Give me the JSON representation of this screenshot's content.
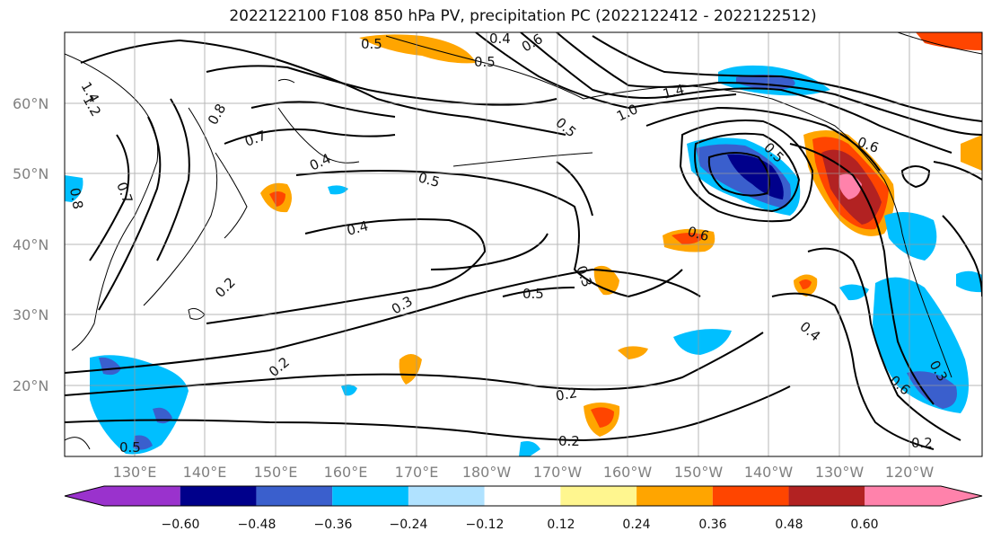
{
  "title": "2022122100 F108 850 hPa PV, precipitation PC (2022122412 - 2022122512)",
  "lat_labels": [
    "60°N",
    "50°N",
    "40°N",
    "30°N",
    "20°N"
  ],
  "lon_labels": [
    "130°E",
    "140°E",
    "150°E",
    "160°E",
    "170°E",
    "180°W",
    "170°W",
    "160°W",
    "150°W",
    "140°W",
    "130°W",
    "120°W"
  ],
  "colorbar": {
    "colors": [
      "#9a32cd",
      "#00008b",
      "#3a5fcd",
      "#00bfff",
      "#b0e2ff",
      "#ffffff",
      "#fff68f",
      "#ffa500",
      "#ff4500",
      "#b22222",
      "#ff82ab"
    ],
    "ticks": [
      "−0.60",
      "−0.48",
      "−0.36",
      "−0.24",
      "−0.12",
      "0.12",
      "0.24",
      "0.36",
      "0.48",
      "0.60"
    ]
  },
  "contour_labels": [
    "1.4",
    "1.2",
    "0.4",
    "0.5",
    "0.5",
    "0.6",
    "0.5",
    "1.0",
    "1.4",
    "0.8",
    "0.7",
    "0.7",
    "0.8",
    "0.4",
    "0.5",
    "0.4",
    "0.5",
    "0.6",
    "0.5",
    "0.6",
    "0.3",
    "0.3",
    "0.2",
    "0.2",
    "0.2",
    "0.2",
    "0.4",
    "0.3",
    "0.6",
    "0.2",
    "0.5"
  ]
}
